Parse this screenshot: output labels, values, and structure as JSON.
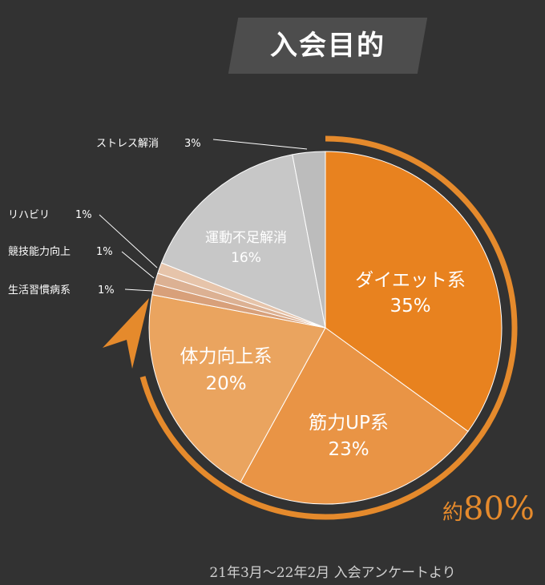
{
  "title": "入会目的",
  "chart_data": {
    "type": "pie",
    "slices": [
      {
        "label": "ダイエット系",
        "value": 35,
        "value_label": "35%",
        "color": "#e8821f",
        "label_pos": "inside"
      },
      {
        "label": "筋力UP系",
        "value": 23,
        "value_label": "23%",
        "color": "#e99445",
        "label_pos": "inside"
      },
      {
        "label": "体力向上系",
        "value": 20,
        "value_label": "20%",
        "color": "#eaa45f",
        "label_pos": "inside"
      },
      {
        "label": "生活習慣病系",
        "value": 1,
        "value_label": "1%",
        "color": "#d8a07a",
        "label_pos": "outside"
      },
      {
        "label": "競技能力向上",
        "value": 1,
        "value_label": "1%",
        "color": "#dcb193",
        "label_pos": "outside"
      },
      {
        "label": "リハビリ",
        "value": 1,
        "value_label": "1%",
        "color": "#e6c4aa",
        "label_pos": "outside"
      },
      {
        "label": "運動不足解消",
        "value": 16,
        "value_label": "16%",
        "color": "#c7c7c7",
        "label_pos": "inside"
      },
      {
        "label": "ストレス解消",
        "value": 3,
        "value_label": "3%",
        "color": "#bcbcbc",
        "label_pos": "outside"
      }
    ],
    "highlight": {
      "prefix": "約",
      "value": "80%",
      "color": "#e58a2c"
    },
    "note": "21年3月～22年2月 入会アンケートより"
  }
}
